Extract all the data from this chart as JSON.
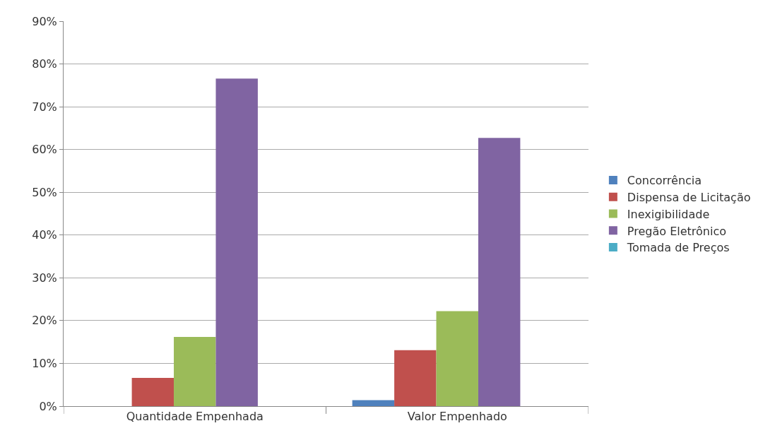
{
  "chart_data": {
    "type": "bar",
    "categories": [
      "Quantidade Empenhada",
      "Valor Empenhado"
    ],
    "series": [
      {
        "name": "Concorrência",
        "color": "#4f81bd",
        "values": [
          0,
          1.4
        ]
      },
      {
        "name": "Dispensa de Licitação",
        "color": "#c0504d",
        "values": [
          6.6,
          13.1
        ]
      },
      {
        "name": "Inexigibilidade",
        "color": "#9bbb59",
        "values": [
          16.2,
          22.2
        ]
      },
      {
        "name": "Pregão Eletrônico",
        "color": "#8064a2",
        "values": [
          76.6,
          62.7
        ]
      },
      {
        "name": "Tomada de Preços",
        "color": "#4bacc6",
        "values": [
          0,
          0
        ]
      }
    ],
    "ylim": [
      0,
      90
    ],
    "yticks": [
      {
        "value": 0,
        "label": "0%"
      },
      {
        "value": 10,
        "label": "10%"
      },
      {
        "value": 20,
        "label": "20%"
      },
      {
        "value": 30,
        "label": "30%"
      },
      {
        "value": 40,
        "label": "40%"
      },
      {
        "value": 50,
        "label": "50%"
      },
      {
        "value": 60,
        "label": "60%"
      },
      {
        "value": 70,
        "label": "70%"
      },
      {
        "value": 80,
        "label": "80%"
      },
      {
        "value": 90,
        "label": "90%"
      }
    ],
    "grid": "y",
    "legend": "right"
  }
}
